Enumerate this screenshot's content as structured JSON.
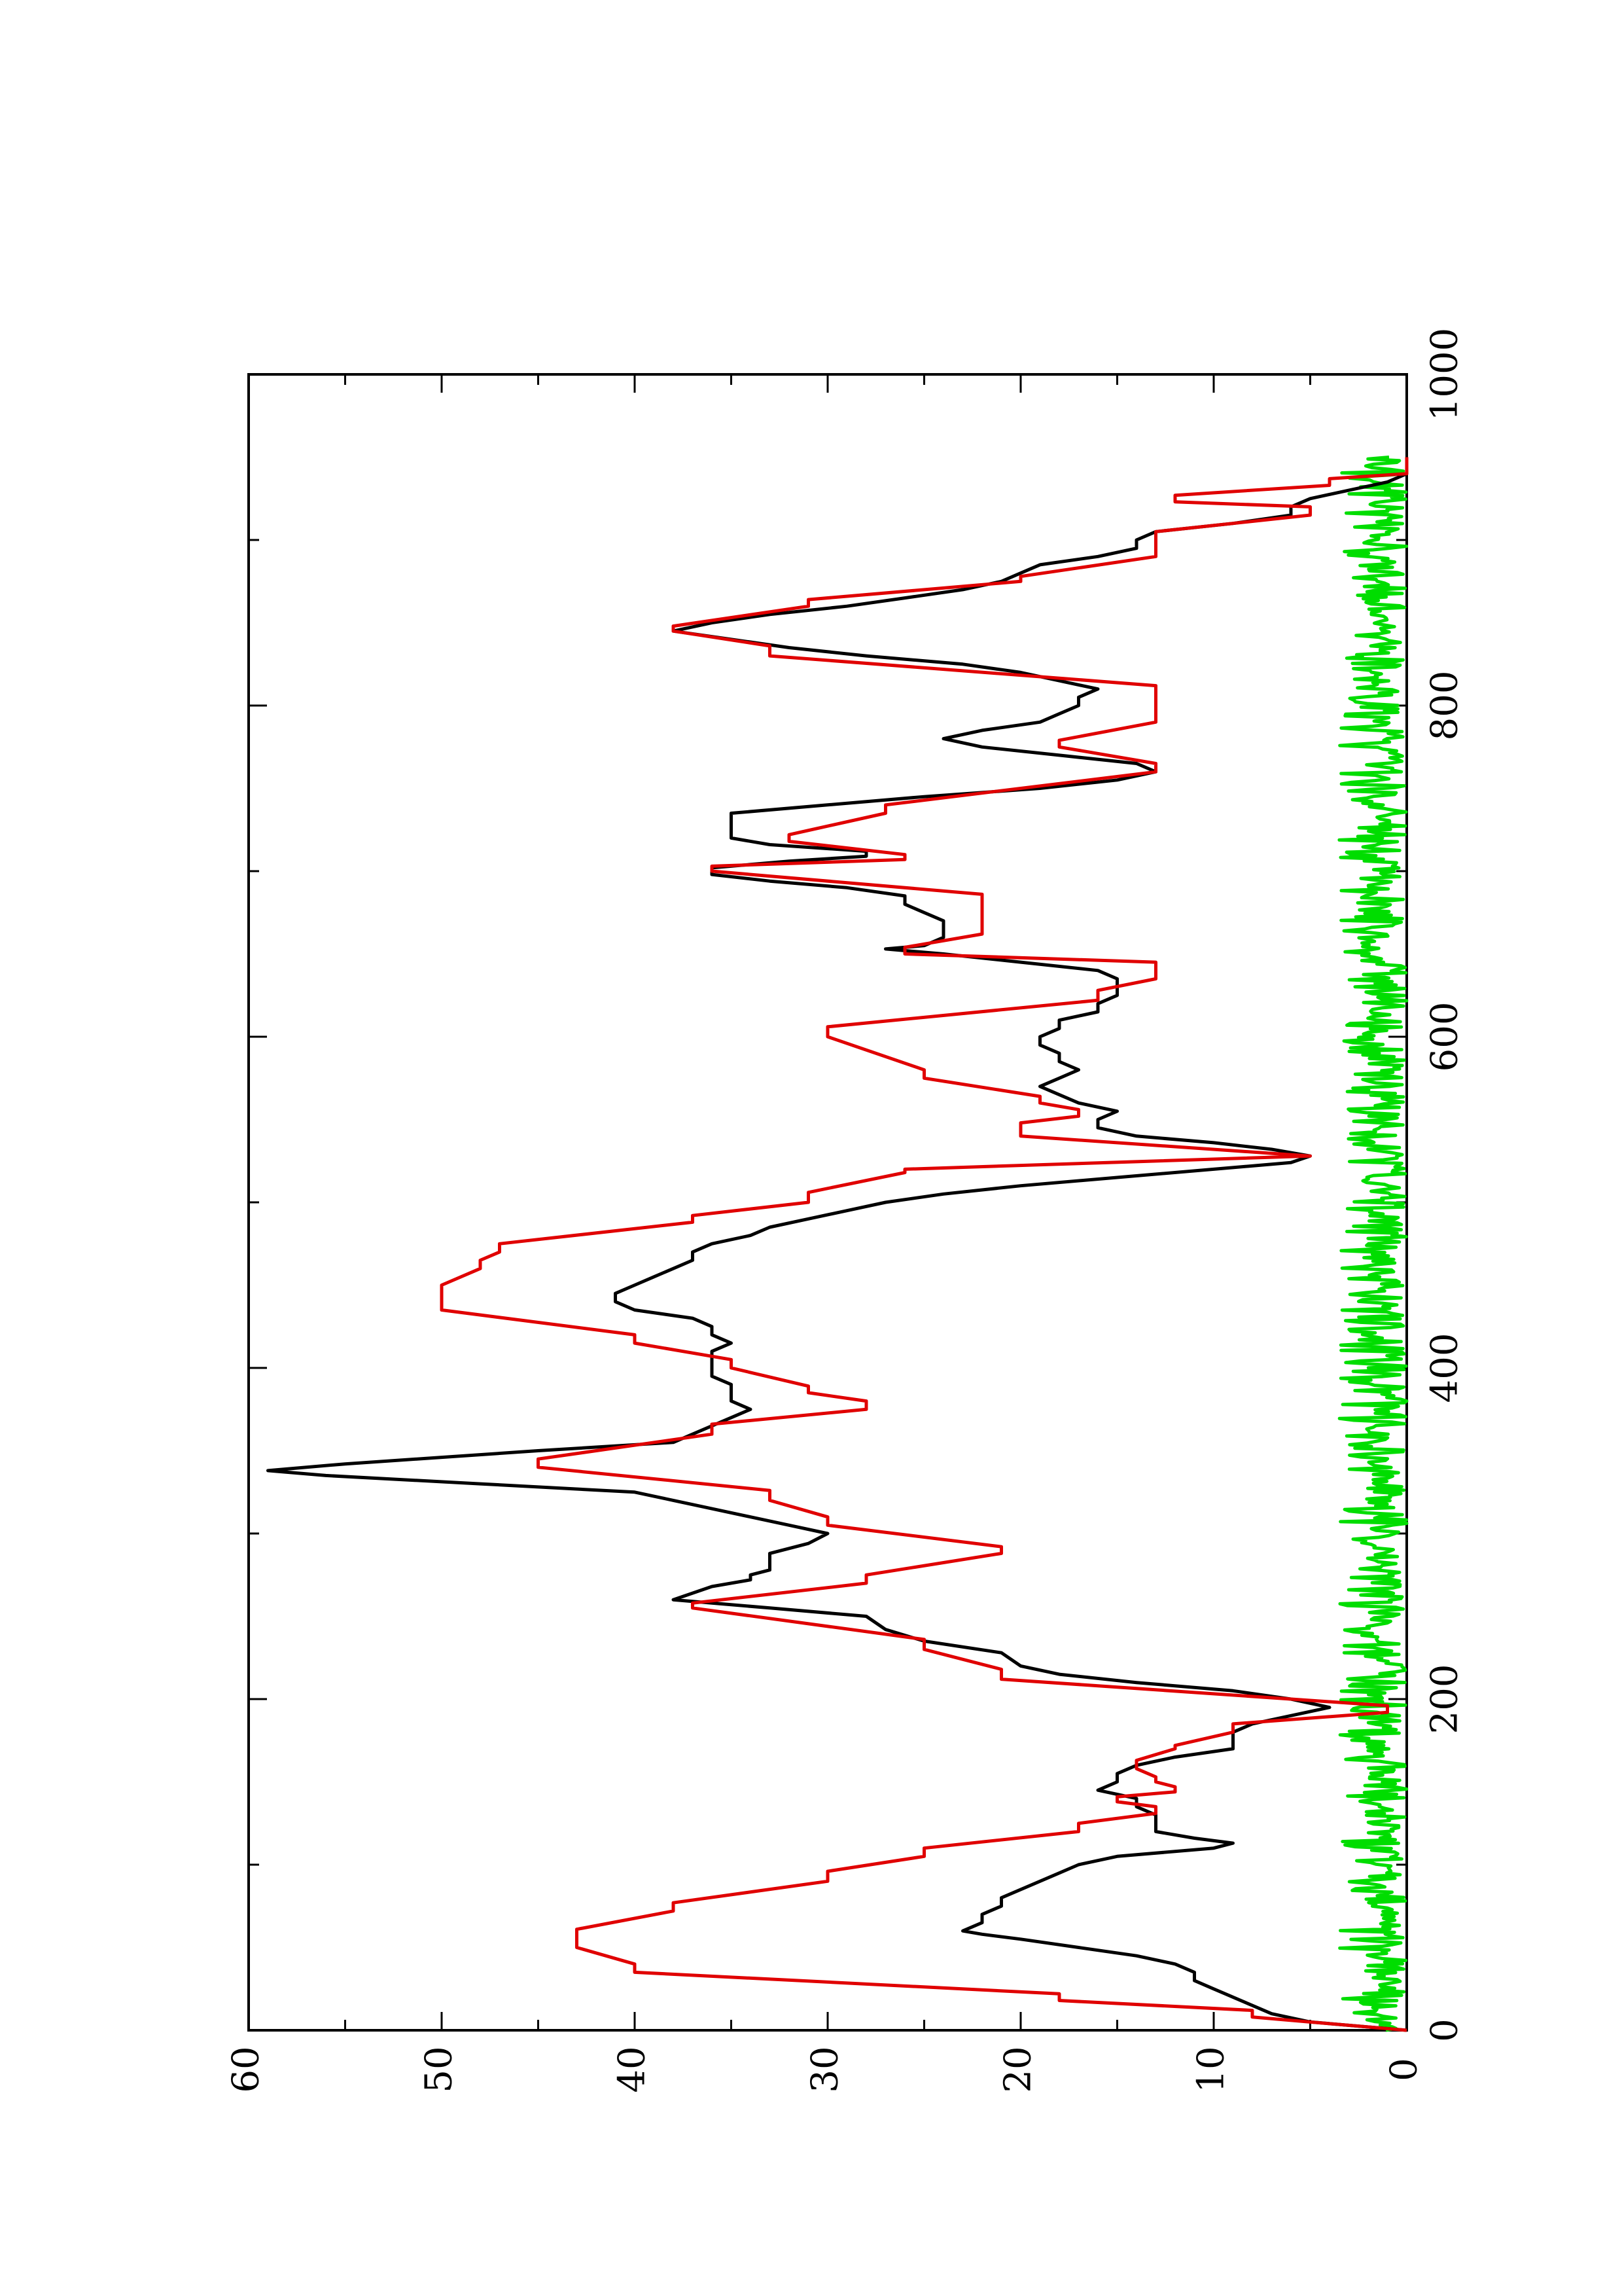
{
  "chart_data": {
    "type": "line",
    "orientation": "rotated-90-counterclockwise",
    "title": "",
    "xlabel": "",
    "ylabel": "",
    "xlim": [
      0,
      1000
    ],
    "ylim": [
      0,
      60
    ],
    "x_ticks": [
      "0",
      "200",
      "400",
      "600",
      "800",
      "1000"
    ],
    "y_ticks": [
      "0",
      "10",
      "20",
      "30",
      "40",
      "50",
      "60"
    ],
    "x_minor_ticks": [
      100,
      300,
      500,
      700,
      900
    ],
    "y_minor_ticks": [
      5,
      15,
      25,
      35,
      45,
      55
    ],
    "grid": false,
    "legend": "none",
    "series": [
      {
        "color": "#e00000",
        "style": "staircase",
        "points": [
          [
            0,
            0
          ],
          [
            8,
            8
          ],
          [
            12,
            8
          ],
          [
            18,
            18
          ],
          [
            22,
            18
          ],
          [
            35,
            40
          ],
          [
            40,
            40
          ],
          [
            50,
            43
          ],
          [
            61,
            43
          ],
          [
            72,
            38
          ],
          [
            77,
            38
          ],
          [
            90,
            30
          ],
          [
            96,
            30
          ],
          [
            105,
            25
          ],
          [
            110,
            25
          ],
          [
            120,
            17
          ],
          [
            125,
            17
          ],
          [
            131,
            13
          ],
          [
            135,
            13
          ],
          [
            138,
            15
          ],
          [
            141,
            15
          ],
          [
            144,
            12
          ],
          [
            147,
            12
          ],
          [
            150,
            13
          ],
          [
            153,
            13
          ],
          [
            158,
            14
          ],
          [
            163,
            14
          ],
          [
            170,
            12
          ],
          [
            172,
            12
          ],
          [
            180,
            9
          ],
          [
            185,
            9
          ],
          [
            192,
            1
          ],
          [
            196,
            1
          ],
          [
            212,
            21
          ],
          [
            218,
            21
          ],
          [
            230,
            25
          ],
          [
            236,
            25
          ],
          [
            255,
            37
          ],
          [
            258,
            37
          ],
          [
            270,
            28
          ],
          [
            275,
            28
          ],
          [
            288,
            21
          ],
          [
            292,
            21
          ],
          [
            305,
            30
          ],
          [
            310,
            30
          ],
          [
            320,
            33
          ],
          [
            326,
            33
          ],
          [
            340,
            45
          ],
          [
            345,
            45
          ],
          [
            360,
            36
          ],
          [
            366,
            36
          ],
          [
            375,
            28
          ],
          [
            380,
            28
          ],
          [
            385,
            31
          ],
          [
            389,
            31
          ],
          [
            400,
            35
          ],
          [
            405,
            35
          ],
          [
            415,
            40
          ],
          [
            420,
            40
          ],
          [
            435,
            50
          ],
          [
            450,
            50
          ],
          [
            460,
            48
          ],
          [
            465,
            48
          ],
          [
            470,
            47
          ],
          [
            475,
            47
          ],
          [
            488,
            37
          ],
          [
            492,
            37
          ],
          [
            500,
            31
          ],
          [
            506,
            31
          ],
          [
            518,
            26
          ],
          [
            520,
            26
          ],
          [
            528,
            5
          ],
          [
            540,
            20
          ],
          [
            548,
            20
          ],
          [
            552,
            17
          ],
          [
            556,
            17
          ],
          [
            560,
            19
          ],
          [
            564,
            19
          ],
          [
            575,
            25
          ],
          [
            580,
            25
          ],
          [
            600,
            30
          ],
          [
            606,
            30
          ],
          [
            622,
            16
          ],
          [
            628,
            16
          ],
          [
            635,
            13
          ],
          [
            645,
            13
          ],
          [
            650,
            26
          ],
          [
            654,
            26
          ],
          [
            662,
            22
          ],
          [
            666,
            22
          ],
          [
            680,
            22
          ],
          [
            686,
            22
          ],
          [
            700,
            36
          ],
          [
            703,
            36
          ],
          [
            707,
            26
          ],
          [
            710,
            26
          ],
          [
            718,
            32
          ],
          [
            722,
            32
          ],
          [
            735,
            27
          ],
          [
            740,
            27
          ],
          [
            760,
            13
          ],
          [
            765,
            13
          ],
          [
            775,
            18
          ],
          [
            779,
            18
          ],
          [
            790,
            13
          ],
          [
            800,
            13
          ],
          [
            808,
            13
          ],
          [
            812,
            13
          ],
          [
            830,
            33
          ],
          [
            836,
            33
          ],
          [
            845,
            38
          ],
          [
            848,
            38
          ],
          [
            860,
            31
          ],
          [
            864,
            31
          ],
          [
            875,
            20
          ],
          [
            878,
            20
          ],
          [
            890,
            13
          ],
          [
            894,
            13
          ],
          [
            900,
            13
          ],
          [
            905,
            13
          ],
          [
            915,
            5
          ],
          [
            920,
            5
          ],
          [
            923,
            12
          ],
          [
            927,
            12
          ],
          [
            933,
            4
          ],
          [
            937,
            4
          ],
          [
            940,
            0
          ],
          [
            950,
            0
          ]
        ]
      },
      {
        "color": "#000000",
        "style": "line",
        "points": [
          [
            0,
            0
          ],
          [
            5,
            5
          ],
          [
            10,
            7
          ],
          [
            15,
            8
          ],
          [
            20,
            9
          ],
          [
            25,
            10
          ],
          [
            30,
            11
          ],
          [
            35,
            11
          ],
          [
            40,
            12
          ],
          [
            45,
            14
          ],
          [
            50,
            17
          ],
          [
            55,
            20
          ],
          [
            58,
            22
          ],
          [
            60,
            23
          ],
          [
            65,
            22
          ],
          [
            70,
            22
          ],
          [
            75,
            21
          ],
          [
            80,
            21
          ],
          [
            85,
            20
          ],
          [
            90,
            19
          ],
          [
            95,
            18
          ],
          [
            100,
            17
          ],
          [
            105,
            15
          ],
          [
            110,
            10
          ],
          [
            113,
            9
          ],
          [
            116,
            11
          ],
          [
            120,
            13
          ],
          [
            125,
            13
          ],
          [
            130,
            13
          ],
          [
            135,
            14
          ],
          [
            140,
            14
          ],
          [
            145,
            16
          ],
          [
            150,
            15
          ],
          [
            155,
            15
          ],
          [
            160,
            14
          ],
          [
            165,
            12
          ],
          [
            170,
            9
          ],
          [
            175,
            9
          ],
          [
            180,
            9
          ],
          [
            185,
            8
          ],
          [
            190,
            6
          ],
          [
            195,
            4
          ],
          [
            200,
            6
          ],
          [
            205,
            9
          ],
          [
            210,
            14
          ],
          [
            215,
            18
          ],
          [
            220,
            20
          ],
          [
            228,
            21
          ],
          [
            235,
            25
          ],
          [
            242,
            27
          ],
          [
            250,
            28
          ],
          [
            255,
            33
          ],
          [
            260,
            38
          ],
          [
            264,
            37
          ],
          [
            268,
            36
          ],
          [
            272,
            34
          ],
          [
            275,
            34
          ],
          [
            278,
            33
          ],
          [
            282,
            33
          ],
          [
            288,
            33
          ],
          [
            294,
            31
          ],
          [
            300,
            30
          ],
          [
            305,
            32
          ],
          [
            310,
            34
          ],
          [
            315,
            36
          ],
          [
            320,
            38
          ],
          [
            325,
            40
          ],
          [
            330,
            48
          ],
          [
            335,
            56
          ],
          [
            338,
            59
          ],
          [
            342,
            55
          ],
          [
            346,
            50
          ],
          [
            350,
            45
          ],
          [
            355,
            38
          ],
          [
            360,
            37
          ],
          [
            365,
            36
          ],
          [
            370,
            35
          ],
          [
            375,
            34
          ],
          [
            380,
            35
          ],
          [
            385,
            35
          ],
          [
            390,
            35
          ],
          [
            395,
            36
          ],
          [
            400,
            36
          ],
          [
            405,
            36
          ],
          [
            410,
            36
          ],
          [
            415,
            35
          ],
          [
            420,
            36
          ],
          [
            425,
            36
          ],
          [
            430,
            37
          ],
          [
            435,
            40
          ],
          [
            440,
            41
          ],
          [
            445,
            41
          ],
          [
            450,
            40
          ],
          [
            455,
            39
          ],
          [
            460,
            38
          ],
          [
            465,
            37
          ],
          [
            470,
            37
          ],
          [
            475,
            36
          ],
          [
            480,
            34
          ],
          [
            485,
            33
          ],
          [
            490,
            31
          ],
          [
            495,
            29
          ],
          [
            500,
            27
          ],
          [
            505,
            24
          ],
          [
            510,
            20
          ],
          [
            515,
            15
          ],
          [
            520,
            10
          ],
          [
            524,
            6
          ],
          [
            528,
            5
          ],
          [
            532,
            7
          ],
          [
            536,
            10
          ],
          [
            540,
            14
          ],
          [
            545,
            16
          ],
          [
            550,
            16
          ],
          [
            555,
            15
          ],
          [
            560,
            17
          ],
          [
            565,
            18
          ],
          [
            570,
            19
          ],
          [
            575,
            18
          ],
          [
            580,
            17
          ],
          [
            585,
            18
          ],
          [
            590,
            18
          ],
          [
            595,
            19
          ],
          [
            600,
            19
          ],
          [
            605,
            18
          ],
          [
            610,
            18
          ],
          [
            615,
            16
          ],
          [
            620,
            16
          ],
          [
            625,
            15
          ],
          [
            630,
            15
          ],
          [
            635,
            15
          ],
          [
            640,
            16
          ],
          [
            645,
            20
          ],
          [
            650,
            24
          ],
          [
            653,
            27
          ],
          [
            655,
            25
          ],
          [
            660,
            24
          ],
          [
            665,
            24
          ],
          [
            670,
            24
          ],
          [
            675,
            25
          ],
          [
            680,
            26
          ],
          [
            685,
            26
          ],
          [
            690,
            29
          ],
          [
            694,
            33
          ],
          [
            698,
            36
          ],
          [
            702,
            36
          ],
          [
            706,
            32
          ],
          [
            709,
            28
          ],
          [
            712,
            28
          ],
          [
            716,
            33
          ],
          [
            720,
            35
          ],
          [
            725,
            35
          ],
          [
            730,
            35
          ],
          [
            735,
            35
          ],
          [
            740,
            30
          ],
          [
            745,
            25
          ],
          [
            750,
            19
          ],
          [
            755,
            15
          ],
          [
            760,
            13
          ],
          [
            765,
            14
          ],
          [
            770,
            18
          ],
          [
            775,
            22
          ],
          [
            780,
            24
          ],
          [
            785,
            22
          ],
          [
            790,
            19
          ],
          [
            795,
            18
          ],
          [
            800,
            17
          ],
          [
            805,
            17
          ],
          [
            810,
            16
          ],
          [
            815,
            18
          ],
          [
            820,
            20
          ],
          [
            825,
            23
          ],
          [
            830,
            28
          ],
          [
            835,
            32
          ],
          [
            840,
            35
          ],
          [
            845,
            38
          ],
          [
            850,
            36
          ],
          [
            855,
            33
          ],
          [
            860,
            29
          ],
          [
            865,
            26
          ],
          [
            870,
            23
          ],
          [
            875,
            21
          ],
          [
            880,
            20
          ],
          [
            885,
            19
          ],
          [
            890,
            16
          ],
          [
            895,
            14
          ],
          [
            900,
            14
          ],
          [
            905,
            13
          ],
          [
            910,
            9
          ],
          [
            915,
            6
          ],
          [
            920,
            6
          ],
          [
            925,
            5
          ],
          [
            930,
            3
          ],
          [
            935,
            1
          ],
          [
            940,
            0
          ],
          [
            945,
            0
          ],
          [
            950,
            0
          ]
        ]
      },
      {
        "color": "#00dd00",
        "style": "noise",
        "amplitude": 3.5,
        "points": [
          [
            0,
            0
          ],
          [
            950,
            0
          ]
        ]
      }
    ]
  }
}
